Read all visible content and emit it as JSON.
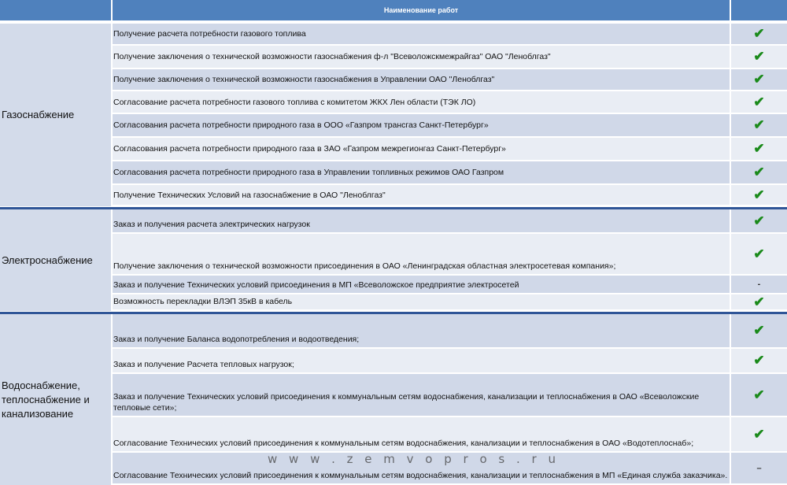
{
  "header": {
    "title": "Наименование работ"
  },
  "check_color": "#1a8a1a",
  "sections": [
    {
      "group": "Газоснабжение",
      "rows": [
        {
          "text": "Получение расчета потребности газового топлива",
          "status": "✔"
        },
        {
          "text": "Получение заключения  о технической возможности газоснабжения ф-л \"Всеволожскмежрайгаз\" ОАО \"Леноблгаз\"",
          "status": "✔"
        },
        {
          "text": "Получение заключения  о технической возможности газоснабжения в Управлении ОАО \"Леноблгаз\"",
          "status": "✔"
        },
        {
          "text": "Согласование расчета потребности газового топлива с комитетом ЖКХ Лен области (ТЭК ЛО)",
          "status": "✔"
        },
        {
          "text": "Согласования расчета потребности природного газа в ООО «Газпром трансгаз Санкт-Петербург»",
          "status": "✔"
        },
        {
          "text": "Согласования расчета потребности природного газа в ЗАО «Газпром межрегионгаз Санкт-Петербург»",
          "status": "✔"
        },
        {
          "text": "Согласования расчета потребности природного газа в Управлении топливных режимов ОАО Газпром",
          "status": "✔"
        },
        {
          "text": "Получение Технических Условий на газоснабжение в ОАО \"Леноблгаз\"",
          "status": "✔"
        }
      ]
    },
    {
      "group": "Электроснабжение",
      "rows": [
        {
          "text": "Заказ и получения расчета электрических нагрузок",
          "status": "✔"
        },
        {
          "text": "Получение заключения о технической возможности присоединения в ОАО «Ленинградская областная электросетевая компания»;",
          "status": "✔"
        },
        {
          "text": "Заказ и получение Технических условий присоединения в МП «Всеволожское предприятие электросетей",
          "status": "-"
        },
        {
          "text": "Возможность перекладки ВЛЭП 35кВ в кабель",
          "status": "✔"
        }
      ]
    },
    {
      "group": "Водоснабжение, теплоснабжение и канализование",
      "rows": [
        {
          "text": "Заказ и получение Баланса водопотребления и водоотведения;",
          "status": "✔"
        },
        {
          "text": "Заказ и получение Расчета тепловых нагрузок;",
          "status": "✔"
        },
        {
          "text": "Заказ и получение Технических условий присоединения к коммунальным сетям водоснабжения, канализации и теплоснабжения в ОАО «Всеволожские тепловые сети»;",
          "status": "✔"
        },
        {
          "text": "Согласование Технических условий присоединения к коммунальным сетям водоснабжения, канализации и теплоснабжения в ОАО «Водотеплоснаб»;",
          "status": "✔"
        },
        {
          "text": "Согласование Технических условий присоединения к коммунальным сетям водоснабжения, канализации и теплоснабжения в МП «Единая служба заказчика».",
          "status": "–"
        }
      ]
    }
  ],
  "watermark": "www.zemvopros.ru"
}
